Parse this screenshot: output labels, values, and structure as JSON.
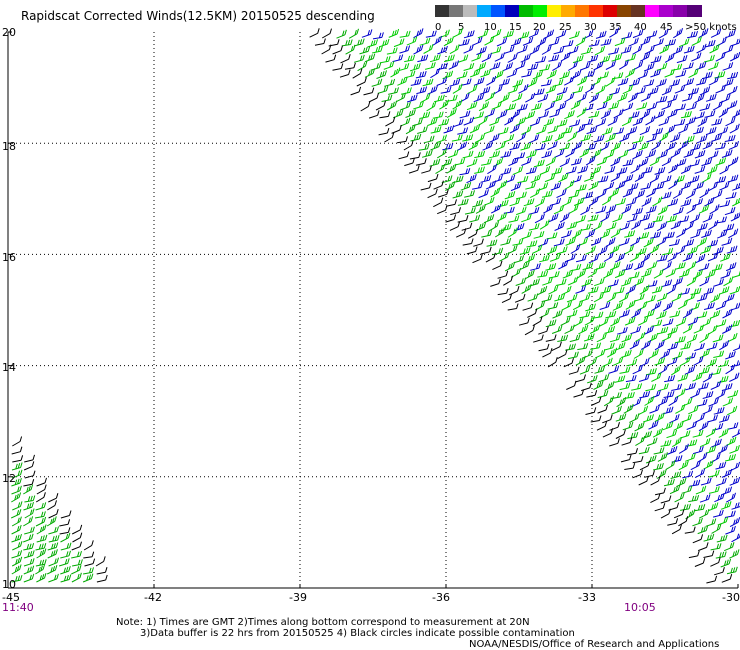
{
  "title": "Rapidscat Corrected Winds(12.5KM) 20150525 descending",
  "legend": {
    "colors": [
      "#333333",
      "#777777",
      "#bbbbbb",
      "#00aaff",
      "#0055ff",
      "#0000bb",
      "#00bb00",
      "#00ee00",
      "#ffee00",
      "#ffaa00",
      "#ff7700",
      "#ff3300",
      "#dd0000",
      "#884400",
      "#663322",
      "#ff00ff",
      "#aa00cc",
      "#8800aa",
      "#550077"
    ],
    "labels": [
      "0",
      "5",
      "10",
      "15",
      "20",
      "25",
      "30",
      "35",
      "40",
      "45",
      ">50 knots"
    ]
  },
  "chart_data": {
    "type": "wind-barb-map",
    "longitude_ticks": [
      "-45",
      "-42",
      "-39",
      "-36",
      "-33",
      "-30"
    ],
    "latitude_ticks": [
      "20",
      "18",
      "16",
      "14",
      "12",
      "10"
    ],
    "xlim": [
      -45,
      -30
    ],
    "ylim": [
      10,
      20
    ],
    "grid": true,
    "speed_colors": {
      "black": "0-5",
      "green": "15-20",
      "blue": "10-15"
    }
  },
  "time_left": "11:40",
  "time_right": "10:05",
  "notes": [
    "Note: 1) Times are GMT 2)Times along bottom correspond to measurement at 20N",
    "3)Data buffer is 22 hrs from 20150525 4) Black circles indicate possible contamination",
    "NOAA/NESDIS/Office of Research and Applications"
  ]
}
